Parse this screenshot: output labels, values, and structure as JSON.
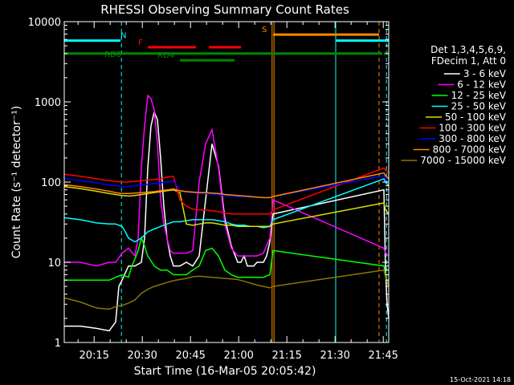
{
  "chart_data": {
    "type": "line",
    "title": "RHESSI Observing Summary Count Rates",
    "xlabel": "Start Time (16-Mar-05 20:05:42)",
    "ylabel": "Count Rate (s⁻¹ detector⁻¹)",
    "ylog": true,
    "ylim": [
      1,
      10000
    ],
    "xlim_minutes": [
      0,
      101
    ],
    "x_tick_labels": [
      "20:15",
      "20:30",
      "20:45",
      "21:00",
      "21:15",
      "21:30",
      "21:45"
    ],
    "x_tick_minutes": [
      9.3,
      24.3,
      39.3,
      54.3,
      69.3,
      84.3,
      99.3
    ],
    "y_tick_labels": [
      "1",
      "10",
      "100",
      "1000",
      "10000"
    ],
    "y_tick_values": [
      1,
      10,
      100,
      1000,
      10000
    ],
    "legend_header": [
      "Det 1,3,4,5,6,9,",
      "FDecim 1, Att 0"
    ],
    "legend": [
      {
        "label": "3 - 6 keV",
        "color": "#ffffff"
      },
      {
        "label": "6 - 12 keV",
        "color": "#ff00ff"
      },
      {
        "label": "12 - 25 keV",
        "color": "#00ff00"
      },
      {
        "label": "25 - 50 keV",
        "color": "#00ffff"
      },
      {
        "label": "50 - 100 keV",
        "color": "#dddd00"
      },
      {
        "label": "100 - 300 keV",
        "color": "#ff0000"
      },
      {
        "label": "300 - 800 keV",
        "color": "#0000ff"
      },
      {
        "label": "800 - 7000 keV",
        "color": "#ff8800"
      },
      {
        "label": "7000 - 15000 keV",
        "color": "#887700"
      }
    ],
    "flag_bars": [
      {
        "label": "N",
        "color": "#00ffff",
        "segments": [
          [
            0,
            17.5
          ],
          [
            84.5,
            101
          ]
        ],
        "level": 5800
      },
      {
        "label": "F",
        "color": "#ff0000",
        "segments": [
          [
            26,
            41
          ],
          [
            45,
            55
          ]
        ],
        "level": 4800
      },
      {
        "label": "RD0",
        "color": "#008800",
        "segments": [
          [
            0,
            99
          ],
          [
            99.5,
            101
          ]
        ],
        "level": 4000
      },
      {
        "label": "RD4",
        "color": "#008800",
        "segments": [
          [
            36,
            53
          ]
        ],
        "level": 3300
      },
      {
        "label": "S",
        "color": "#ff8800",
        "segments": [
          [
            65,
            98
          ]
        ],
        "level": 6900
      }
    ],
    "vertical_lines": [
      {
        "minute": 17.8,
        "color": "#00ffff",
        "style": "dashed"
      },
      {
        "minute": 64.7,
        "color": "#ff8800",
        "style": "solid"
      },
      {
        "minute": 65.3,
        "color": "#ff8800",
        "style": "solid"
      },
      {
        "minute": 84.5,
        "color": "#00ffff",
        "style": "solid"
      },
      {
        "minute": 98.0,
        "color": "#ff8800",
        "style": "dashed"
      },
      {
        "minute": 100.3,
        "color": "#00ffff",
        "style": "dashed"
      }
    ],
    "series": [
      {
        "name": "3 - 6 keV",
        "color": "#ffffff",
        "x": [
          0,
          5,
          10,
          14,
          16,
          17,
          18,
          20,
          22,
          24,
          25,
          26,
          27,
          28,
          29,
          30,
          31,
          32,
          33,
          34,
          36,
          38,
          40,
          42,
          44,
          46,
          48,
          50,
          52,
          54,
          55,
          56,
          57,
          58,
          59,
          60,
          62,
          63,
          64,
          65,
          99.5,
          100,
          100.5,
          101
        ],
        "y": [
          1.6,
          1.6,
          1.5,
          1.4,
          1.8,
          5,
          6,
          9,
          9,
          10,
          20,
          150,
          500,
          750,
          600,
          200,
          50,
          20,
          12,
          9,
          9,
          10,
          9,
          12,
          60,
          300,
          160,
          35,
          16,
          10,
          10,
          12,
          9,
          9,
          9,
          10,
          10,
          12,
          18,
          40,
          80,
          8,
          3,
          2
        ]
      },
      {
        "name": "6 - 12 keV",
        "color": "#ff00ff",
        "x": [
          0,
          5,
          10,
          14,
          16,
          18,
          20,
          22,
          23,
          24,
          25,
          26,
          27,
          28,
          29,
          30,
          31,
          32,
          33,
          34,
          36,
          38,
          40,
          42,
          44,
          46,
          48,
          50,
          52,
          54,
          56,
          58,
          60,
          62,
          64,
          65,
          99.5,
          100,
          101
        ],
        "y": [
          10,
          10,
          9,
          10,
          10,
          13,
          15,
          12,
          20,
          150,
          500,
          1200,
          1100,
          800,
          300,
          60,
          30,
          20,
          14,
          13,
          13,
          13,
          14,
          100,
          300,
          450,
          150,
          30,
          15,
          12,
          12,
          12,
          12,
          13,
          20,
          60,
          15,
          13,
          12
        ]
      },
      {
        "name": "12 - 25 keV",
        "color": "#00ff00",
        "x": [
          0,
          5,
          10,
          14,
          16,
          18,
          20,
          21,
          22,
          23,
          24,
          25,
          26,
          28,
          30,
          32,
          34,
          36,
          38,
          40,
          42,
          44,
          46,
          48,
          50,
          52,
          54,
          56,
          58,
          60,
          62,
          64,
          65,
          99.5,
          100,
          101
        ],
        "y": [
          6,
          6,
          6,
          6,
          6.5,
          7,
          6.5,
          9,
          11,
          14,
          20,
          16,
          12,
          9,
          8,
          8,
          7,
          7,
          7,
          8,
          9,
          14,
          15,
          12,
          8,
          7,
          6.5,
          6.5,
          6.5,
          6.5,
          6.5,
          7,
          14,
          9,
          7,
          5
        ]
      },
      {
        "name": "25 - 50 keV",
        "color": "#00ffff",
        "x": [
          0,
          5,
          10,
          14,
          16,
          18,
          19,
          20,
          22,
          24,
          26,
          28,
          30,
          32,
          34,
          36,
          38,
          40,
          42,
          44,
          46,
          48,
          50,
          52,
          54,
          56,
          58,
          60,
          62,
          64,
          65,
          99.5,
          100,
          101
        ],
        "y": [
          36,
          34,
          31,
          30,
          30,
          28,
          24,
          20,
          18,
          20,
          24,
          26,
          28,
          30,
          32,
          32,
          33,
          34,
          34,
          34,
          34,
          33,
          32,
          30,
          29,
          29,
          28,
          28,
          27,
          28,
          34,
          110,
          100,
          90
        ]
      },
      {
        "name": "50 - 100 keV",
        "color": "#dddd00",
        "x": [
          0,
          5,
          10,
          14,
          16,
          18,
          20,
          22,
          24,
          26,
          28,
          30,
          32,
          34,
          36,
          38,
          40,
          42,
          44,
          46,
          48,
          50,
          52,
          54,
          56,
          58,
          60,
          62,
          64,
          65,
          99.5,
          100,
          101
        ],
        "y": [
          88,
          83,
          77,
          72,
          70,
          68,
          67,
          68,
          70,
          72,
          74,
          76,
          78,
          80,
          74,
          30,
          29,
          30,
          31,
          31,
          30,
          29,
          29,
          28,
          28,
          28,
          28,
          28,
          28,
          30,
          55,
          45,
          40
        ]
      },
      {
        "name": "100 - 300 keV",
        "color": "#ff0000",
        "x": [
          0,
          5,
          10,
          14,
          16,
          18,
          20,
          22,
          24,
          26,
          28,
          30,
          32,
          34,
          36,
          38,
          40,
          42,
          44,
          46,
          48,
          50,
          52,
          54,
          56,
          58,
          60,
          62,
          64,
          65,
          99.5,
          100,
          101
        ],
        "y": [
          125,
          118,
          110,
          104,
          102,
          100,
          100,
          102,
          104,
          106,
          108,
          110,
          115,
          118,
          60,
          50,
          46,
          45,
          45,
          44,
          43,
          41,
          40,
          40,
          40,
          40,
          40,
          40,
          40,
          45,
          150,
          140,
          130
        ]
      },
      {
        "name": "300 - 800 keV",
        "color": "#0000ff",
        "x": [
          0,
          5,
          10,
          14,
          16,
          18,
          20,
          22,
          24,
          26,
          28,
          30,
          32,
          34,
          36,
          38,
          40,
          42,
          44,
          46,
          48,
          50,
          52,
          54,
          56,
          58,
          60,
          62,
          64,
          65,
          99.5,
          100,
          101
        ],
        "y": [
          110,
          104,
          98,
          92,
          90,
          88,
          88,
          90,
          92,
          94,
          96,
          98,
          100,
          102,
          80,
          75,
          74,
          73,
          72,
          71,
          70,
          68,
          67,
          66,
          66,
          65,
          65,
          64,
          64,
          66,
          120,
          110,
          100
        ]
      },
      {
        "name": "800 - 7000 keV",
        "color": "#ff8800",
        "x": [
          0,
          5,
          10,
          14,
          16,
          18,
          20,
          22,
          24,
          26,
          28,
          30,
          32,
          34,
          36,
          38,
          40,
          42,
          44,
          46,
          48,
          50,
          52,
          54,
          56,
          58,
          60,
          62,
          64,
          65,
          99.5,
          100,
          101
        ],
        "y": [
          93,
          88,
          82,
          77,
          74,
          72,
          72,
          73,
          74,
          75,
          76,
          78,
          80,
          82,
          78,
          76,
          75,
          74,
          74,
          73,
          72,
          70,
          69,
          68,
          67,
          66,
          65,
          64,
          64,
          66,
          130,
          120,
          110
        ]
      },
      {
        "name": "7000 - 15000 keV",
        "color": "#887700",
        "x": [
          0,
          5,
          10,
          14,
          16,
          18,
          20,
          22,
          24,
          26,
          28,
          30,
          32,
          34,
          36,
          38,
          40,
          42,
          44,
          46,
          48,
          50,
          52,
          54,
          56,
          58,
          60,
          62,
          64,
          65,
          99.5,
          100,
          101
        ],
        "y": [
          3.6,
          3.2,
          2.7,
          2.6,
          2.8,
          2.9,
          3.1,
          3.4,
          4.1,
          4.6,
          5,
          5.3,
          5.6,
          5.9,
          6.1,
          6.3,
          6.6,
          6.7,
          6.6,
          6.5,
          6.4,
          6.3,
          6.2,
          6.1,
          5.8,
          5.5,
          5.2,
          5.0,
          4.8,
          5,
          8,
          6.5,
          5
        ]
      }
    ]
  },
  "footer": {
    "timestamp": "15-Oct-2021 14:18"
  }
}
